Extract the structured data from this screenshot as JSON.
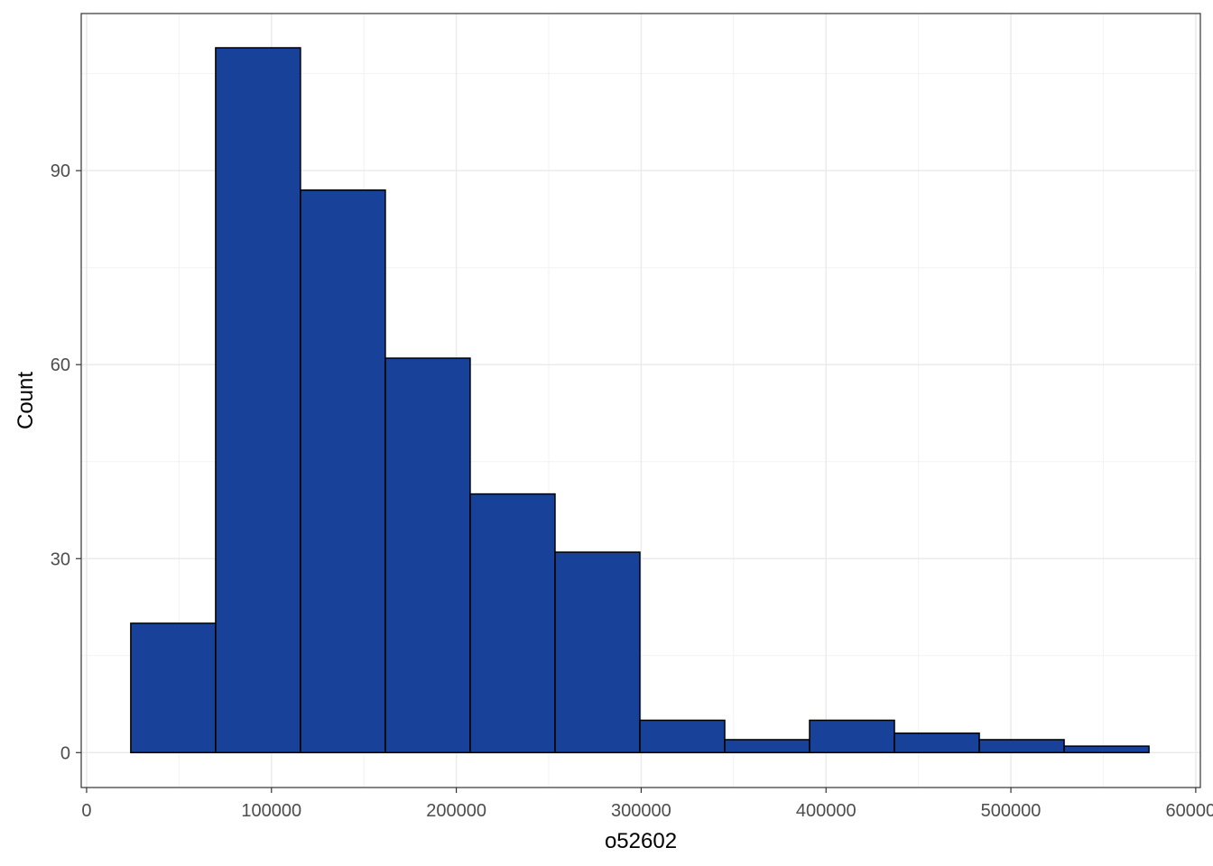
{
  "chart_data": {
    "type": "histogram",
    "x_label": "o52602",
    "y_label": "Count",
    "bins": [
      23900,
      69800,
      115700,
      161600,
      207500,
      253400,
      299300,
      345200,
      391100,
      437000,
      482900,
      528800,
      574700
    ],
    "values": [
      20,
      109,
      87,
      61,
      40,
      31,
      5,
      2,
      5,
      3,
      2,
      1
    ],
    "color": "#18419a",
    "edge_color": "#000000",
    "xlim": [
      -2900,
      602500
    ],
    "ylim": [
      -5.4,
      114.3
    ],
    "xticks": [
      0,
      100000,
      200000,
      300000,
      400000,
      500000,
      600000
    ],
    "yticks": [
      0,
      30,
      60,
      90
    ],
    "x_minor_ticks": [
      50000,
      150000,
      250000,
      350000,
      450000,
      550000
    ],
    "y_minor_ticks": [
      15,
      45,
      75,
      105
    ],
    "grid": true
  }
}
